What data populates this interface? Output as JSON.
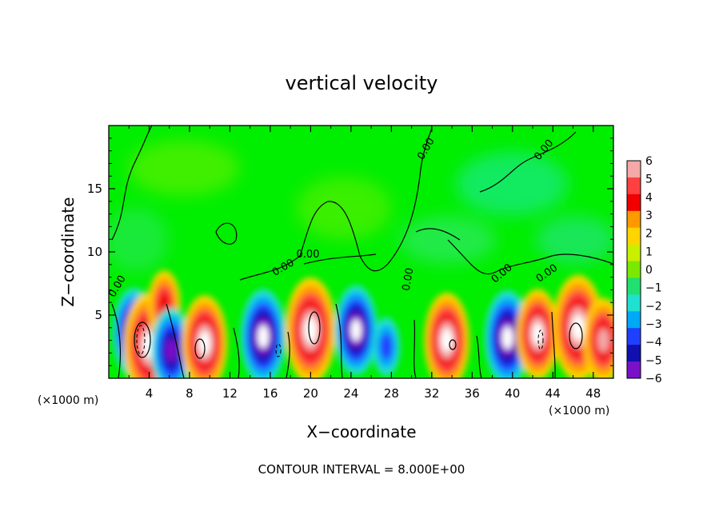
{
  "chart_data": {
    "type": "heatmap",
    "title": "vertical velocity",
    "xlabel": "X−coordinate",
    "ylabel": "Z−coordinate",
    "x_unit_left": "(×1000 m)",
    "x_unit_right": "(×1000 m)",
    "footer": "CONTOUR INTERVAL = 8.000E+00",
    "xlim": [
      0,
      50
    ],
    "ylim": [
      0,
      20
    ],
    "x_ticks": [
      "4",
      "8",
      "12",
      "16",
      "20",
      "24",
      "28",
      "32",
      "36",
      "40",
      "44",
      "48"
    ],
    "y_ticks": [
      "5",
      "10",
      "15"
    ],
    "contour_labels": [
      "0.00",
      "0.00",
      "0.00",
      "0.00",
      "0.00",
      "0.00",
      "0.00",
      "0.00"
    ],
    "colorbar": {
      "labels": [
        "6",
        "5",
        "4",
        "3",
        "2",
        "1",
        "0",
        "−1",
        "−2",
        "−3",
        "−4",
        "−5",
        "−6"
      ],
      "levels": [
        6,
        5,
        4,
        3,
        2,
        1,
        0,
        -1,
        -2,
        -3,
        -4,
        -5,
        -6
      ],
      "colors": [
        "#f4a8a8",
        "#ff4040",
        "#f00000",
        "#ff9900",
        "#ffd400",
        "#c8f000",
        "#7ae800",
        "#20e070",
        "#20e0d0",
        "#00a8f8",
        "#2040ff",
        "#1010b0",
        "#7a10c8"
      ]
    },
    "features": [
      {
        "x": 2.5,
        "z": 3.6,
        "w": -6.5
      },
      {
        "x": 4.0,
        "z": 2.6,
        "w": 8.0
      },
      {
        "x": 5.5,
        "z": 5.8,
        "w": 4.5
      },
      {
        "x": 6.2,
        "z": 2.2,
        "w": -6.0
      },
      {
        "x": 9.5,
        "z": 2.8,
        "w": 7.0
      },
      {
        "x": 15.3,
        "z": 3.3,
        "w": -7.0
      },
      {
        "x": 20.0,
        "z": 3.8,
        "w": 8.0
      },
      {
        "x": 24.5,
        "z": 3.8,
        "w": -6.5
      },
      {
        "x": 27.5,
        "z": 2.5,
        "w": -3.5
      },
      {
        "x": 33.5,
        "z": 3.0,
        "w": 7.0
      },
      {
        "x": 39.5,
        "z": 3.2,
        "w": -7.0
      },
      {
        "x": 42.5,
        "z": 3.5,
        "w": 6.5
      },
      {
        "x": 46.5,
        "z": 4.0,
        "w": 8.0
      },
      {
        "x": 49.0,
        "z": 3.0,
        "w": 6.0
      }
    ],
    "grid": false
  }
}
